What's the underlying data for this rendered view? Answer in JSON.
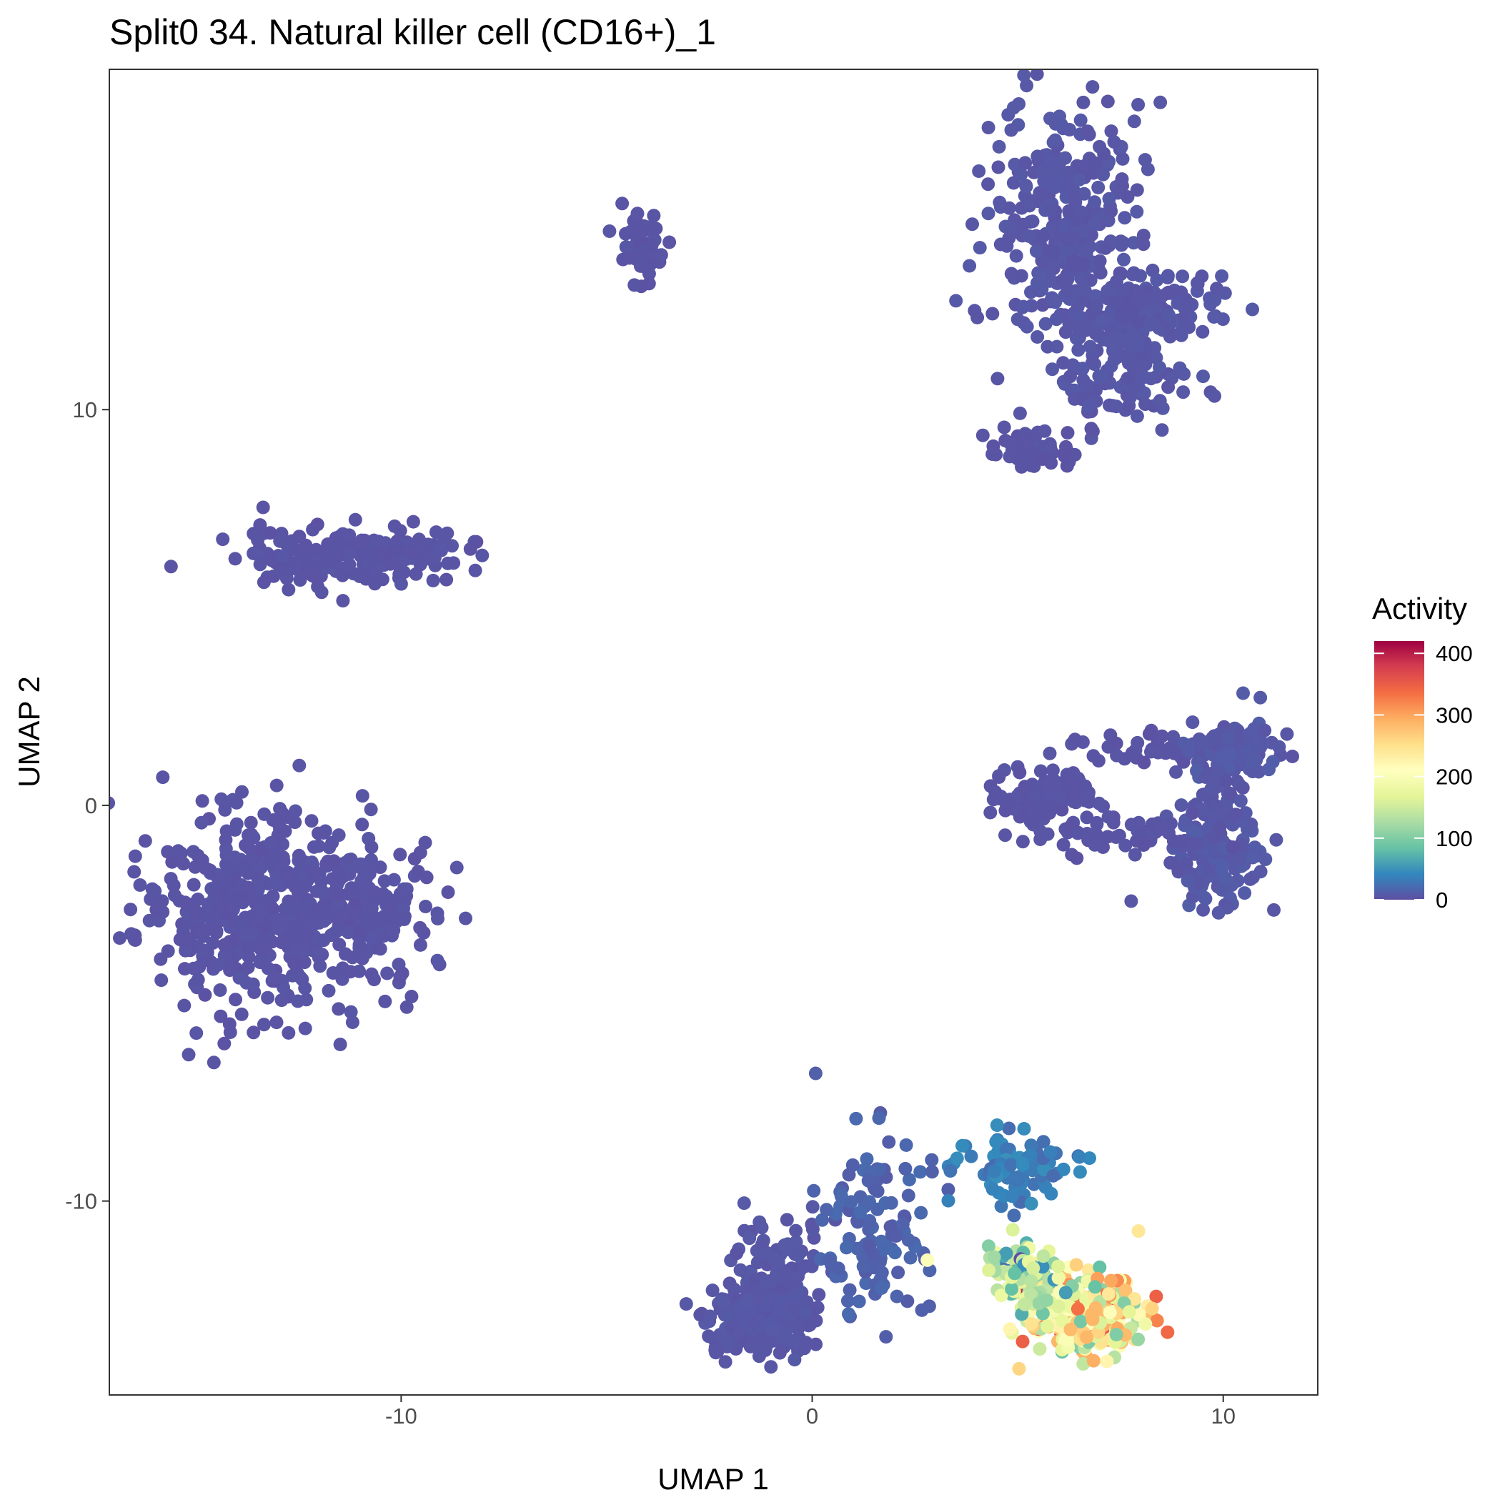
{
  "chart_data": {
    "type": "scatter",
    "title": "Split0 34. Natural killer cell (CD16+)_1",
    "xlabel": "UMAP 1",
    "ylabel": "UMAP 2",
    "xlim": [
      -17.1,
      12.3
    ],
    "ylim": [
      -14.9,
      18.6
    ],
    "x_ticks": [
      -10,
      0,
      10
    ],
    "x_tick_labels": [
      "-10",
      "0",
      "10"
    ],
    "y_ticks": [
      -10,
      0,
      10
    ],
    "y_tick_labels": [
      "-10",
      "0",
      "10"
    ],
    "grid": false,
    "legend": {
      "title": "Activity",
      "placement": "right",
      "range": [
        0,
        420
      ],
      "ticks": [
        0,
        100,
        200,
        300,
        400
      ],
      "tick_labels": [
        "0",
        "100",
        "200",
        "300",
        "400"
      ],
      "colors": [
        "#5E4FA2",
        "#3288BD",
        "#66C2A5",
        "#ABDDA4",
        "#E6F598",
        "#FFFFBF",
        "#FEE08B",
        "#FDAE61",
        "#F46D43",
        "#D53E4F",
        "#9E0142"
      ]
    },
    "point_color_low": "#5E4FA2",
    "clusters": [
      {
        "cx": -13.8,
        "cy": -2.6,
        "sx": 1.3,
        "sy": 1.3,
        "n": 420,
        "v": 4
      },
      {
        "cx": -11.2,
        "cy": -2.6,
        "sx": 1.0,
        "sy": 0.9,
        "n": 220,
        "v": 4
      },
      {
        "cx": -11.2,
        "cy": 6.3,
        "sx": 1.4,
        "sy": 0.35,
        "n": 200,
        "v": 4
      },
      {
        "cx": -4.1,
        "cy": 14.1,
        "sx": 0.25,
        "sy": 0.45,
        "n": 55,
        "v": 4
      },
      {
        "cx": 6.2,
        "cy": 14.6,
        "sx": 0.9,
        "sy": 1.6,
        "n": 330,
        "v": 6
      },
      {
        "cx": 8.2,
        "cy": 12.5,
        "sx": 0.8,
        "sy": 0.5,
        "n": 140,
        "v": 6
      },
      {
        "cx": 7.6,
        "cy": 11.0,
        "sx": 0.8,
        "sy": 0.8,
        "n": 130,
        "v": 6
      },
      {
        "cx": 5.3,
        "cy": 9.0,
        "sx": 0.6,
        "sy": 0.3,
        "n": 60,
        "v": 4
      },
      {
        "cx": 5.6,
        "cy": 0.2,
        "sx": 0.6,
        "sy": 0.4,
        "n": 90,
        "v": 4
      },
      {
        "cx": 8.7,
        "cy": 1.4,
        "sx": 1.3,
        "sy": 0.2,
        "n": 60,
        "v": 4
      },
      {
        "cx": 10.3,
        "cy": 1.4,
        "sx": 0.5,
        "sy": 0.4,
        "n": 120,
        "v": 8
      },
      {
        "cx": 9.8,
        "cy": -1.4,
        "sx": 0.6,
        "sy": 0.6,
        "n": 130,
        "v": 8
      },
      {
        "cx": 9.9,
        "cy": 0.1,
        "sx": 0.3,
        "sy": 0.5,
        "n": 40,
        "v": 6
      },
      {
        "cx": 7.8,
        "cy": -0.7,
        "sx": 1.0,
        "sy": 0.3,
        "n": 60,
        "v": 4
      },
      {
        "cx": -1.3,
        "cy": -13.0,
        "sx": 0.6,
        "sy": 0.45,
        "n": 220,
        "v": 6
      },
      {
        "cx": -0.8,
        "cy": -12.0,
        "sx": 0.6,
        "sy": 0.8,
        "n": 120,
        "v": 6
      },
      {
        "cx": 1.5,
        "cy": -10.6,
        "sx": 0.6,
        "sy": 1.2,
        "n": 120,
        "v": 15
      },
      {
        "cx": 5.0,
        "cy": -9.2,
        "sx": 0.7,
        "sy": 0.4,
        "n": 90,
        "v": 35
      },
      {
        "cx": 6.6,
        "cy": -12.9,
        "sx": 0.7,
        "sy": 0.5,
        "n": 320,
        "v": 220
      },
      {
        "cx": 5.2,
        "cy": -11.8,
        "sx": 0.5,
        "sy": 0.4,
        "n": 100,
        "v": 130
      }
    ]
  }
}
